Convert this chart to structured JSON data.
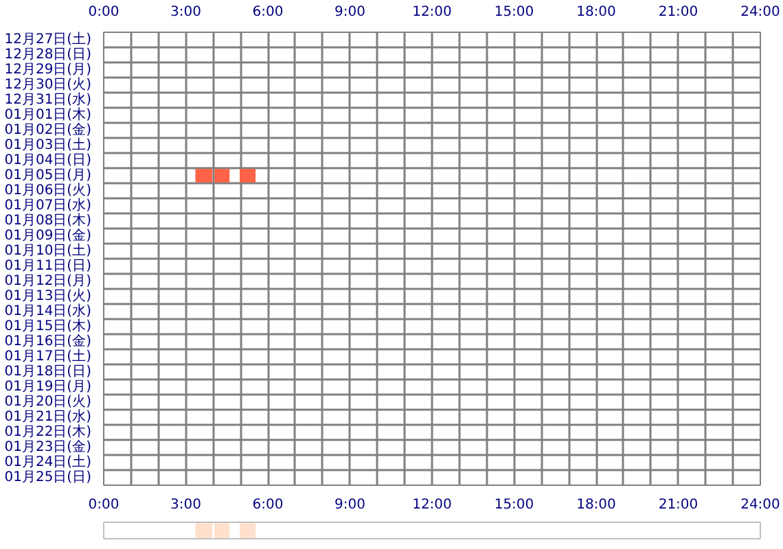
{
  "chart_data": [
    {
      "type": "bar",
      "orientation": "horizontal",
      "categories": [
        "12月27日(土)",
        "12月28日(日)",
        "12月29日(月)",
        "12月30日(火)",
        "12月31日(水)",
        "01月01日(木)",
        "01月02日(金)",
        "01月03日(土)",
        "01月04日(日)",
        "01月05日(月)",
        "01月06日(火)",
        "01月07日(水)",
        "01月08日(木)",
        "01月09日(金)",
        "01月10日(土)",
        "01月11日(日)",
        "01月12日(月)",
        "01月13日(火)",
        "01月14日(水)",
        "01月15日(木)",
        "01月16日(金)",
        "01月17日(土)",
        "01月18日(日)",
        "01月19日(月)",
        "01月20日(火)",
        "01月21日(水)",
        "01月22日(木)",
        "01月23日(金)",
        "01月24日(土)",
        "01月25日(日)"
      ],
      "series": [
        {
          "color": "#ff6347",
          "base": [
            null,
            null,
            null,
            null,
            null,
            null,
            null,
            null,
            null,
            3.35,
            null,
            null,
            null,
            null,
            null,
            null,
            null,
            null,
            null,
            null,
            null,
            null,
            null,
            null,
            null,
            null,
            null,
            null,
            null,
            null
          ],
          "values": [
            null,
            null,
            null,
            null,
            null,
            null,
            null,
            null,
            null,
            0.62,
            null,
            null,
            null,
            null,
            null,
            null,
            null,
            null,
            null,
            null,
            null,
            null,
            null,
            null,
            null,
            null,
            null,
            null,
            null,
            null
          ]
        },
        {
          "color": "#ff6347",
          "base": [
            null,
            null,
            null,
            null,
            null,
            null,
            null,
            null,
            null,
            4.05,
            null,
            null,
            null,
            null,
            null,
            null,
            null,
            null,
            null,
            null,
            null,
            null,
            null,
            null,
            null,
            null,
            null,
            null,
            null,
            null
          ],
          "values": [
            null,
            null,
            null,
            null,
            null,
            null,
            null,
            null,
            null,
            0.55,
            null,
            null,
            null,
            null,
            null,
            null,
            null,
            null,
            null,
            null,
            null,
            null,
            null,
            null,
            null,
            null,
            null,
            null,
            null,
            null
          ]
        },
        {
          "color": "#ff6347",
          "base": [
            null,
            null,
            null,
            null,
            null,
            null,
            null,
            null,
            null,
            4.97,
            null,
            null,
            null,
            null,
            null,
            null,
            null,
            null,
            null,
            null,
            null,
            null,
            null,
            null,
            null,
            null,
            null,
            null,
            null,
            null
          ],
          "values": [
            null,
            null,
            null,
            null,
            null,
            null,
            null,
            null,
            null,
            0.58,
            null,
            null,
            null,
            null,
            null,
            null,
            null,
            null,
            null,
            null,
            null,
            null,
            null,
            null,
            null,
            null,
            null,
            null,
            null,
            null
          ]
        }
      ],
      "xlim": [
        0,
        24
      ],
      "xticks": [
        {
          "value": 0,
          "label": "0:00"
        },
        {
          "value": 1,
          "label": null
        },
        {
          "value": 2,
          "label": null
        },
        {
          "value": 3,
          "label": "3:00"
        },
        {
          "value": 4,
          "label": null
        },
        {
          "value": 5,
          "label": null
        },
        {
          "value": 6,
          "label": "6:00"
        },
        {
          "value": 7,
          "label": null
        },
        {
          "value": 8,
          "label": null
        },
        {
          "value": 9,
          "label": "9:00"
        },
        {
          "value": 10,
          "label": null
        },
        {
          "value": 11,
          "label": null
        },
        {
          "value": 12,
          "label": "12:00"
        },
        {
          "value": 13,
          "label": null
        },
        {
          "value": 14,
          "label": null
        },
        {
          "value": 15,
          "label": "15:00"
        },
        {
          "value": 16,
          "label": null
        },
        {
          "value": 17,
          "label": null
        },
        {
          "value": 18,
          "label": "18:00"
        },
        {
          "value": 19,
          "label": null
        },
        {
          "value": 20,
          "label": null
        },
        {
          "value": 21,
          "label": "21:00"
        },
        {
          "value": 22,
          "label": null
        },
        {
          "value": 23,
          "label": null
        },
        {
          "value": 24,
          "label": "24:00"
        }
      ],
      "x2lim": [
        0,
        24
      ],
      "x2ticks": [
        {
          "value": 0,
          "label": "0:00"
        },
        {
          "value": 1,
          "label": null
        },
        {
          "value": 2,
          "label": null
        },
        {
          "value": 3,
          "label": "3:00"
        },
        {
          "value": 4,
          "label": null
        },
        {
          "value": 5,
          "label": null
        },
        {
          "value": 6,
          "label": "6:00"
        },
        {
          "value": 7,
          "label": null
        },
        {
          "value": 8,
          "label": null
        },
        {
          "value": 9,
          "label": "9:00"
        },
        {
          "value": 10,
          "label": null
        },
        {
          "value": 11,
          "label": null
        },
        {
          "value": 12,
          "label": "12:00"
        },
        {
          "value": 13,
          "label": null
        },
        {
          "value": 14,
          "label": null
        },
        {
          "value": 15,
          "label": "15:00"
        },
        {
          "value": 16,
          "label": null
        },
        {
          "value": 17,
          "label": null
        },
        {
          "value": 18,
          "label": "18:00"
        },
        {
          "value": 19,
          "label": null
        },
        {
          "value": 20,
          "label": null
        },
        {
          "value": 21,
          "label": "21:00"
        },
        {
          "value": 22,
          "label": null
        },
        {
          "value": 23,
          "label": null
        },
        {
          "value": 24,
          "label": "24:00"
        }
      ],
      "grid": true
    },
    {
      "type": "bar",
      "orientation": "horizontal",
      "categories": [
        null
      ],
      "series": [
        {
          "color": "#ffe0cc",
          "base": [
            3.35
          ],
          "values": [
            0.62
          ]
        },
        {
          "color": "#ffe0cc",
          "base": [
            4.05
          ],
          "values": [
            0.55
          ]
        },
        {
          "color": "#ffe0cc",
          "base": [
            4.97
          ],
          "values": [
            0.58
          ]
        }
      ],
      "xlim": [
        0,
        24
      ]
    }
  ]
}
